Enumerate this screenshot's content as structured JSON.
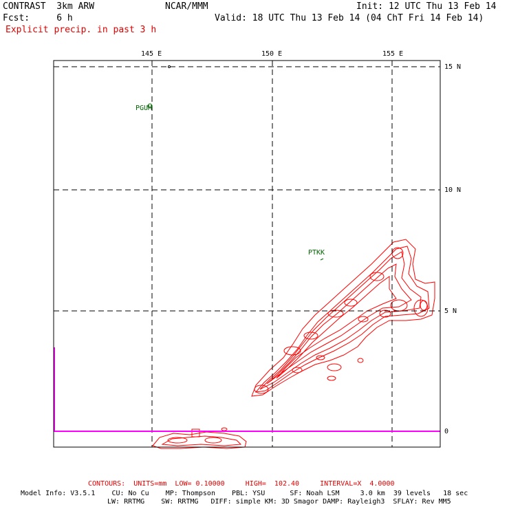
{
  "header": {
    "model_name": "CONTRAST  3km ARW",
    "org": "NCAR/MMM",
    "init": "Init: 12 UTC Thu 13 Feb 14",
    "fcst": "Fcst:     6 h",
    "valid": "Valid: 18 UTC Thu 13 Feb 14 (04 ChT Fri 14 Feb 14)",
    "field": "Explicit precip. in past 3 h"
  },
  "map": {
    "lon_labels": [
      "145 E",
      "150 E",
      "155 E"
    ],
    "lat_labels": [
      "15 N",
      "10 N",
      "5 N",
      "0"
    ],
    "stations": [
      {
        "id": "PGUM"
      },
      {
        "id": "PTKK"
      }
    ],
    "colors": {
      "contour": "#ff0000",
      "grid": "#000000",
      "station": "#006400",
      "baseline": "#ff00ff"
    }
  },
  "footer": {
    "contours": "CONTOURS:  UNITS=mm  LOW= 0.10000     HIGH=  102.40     INTERVAL=X  4.0000",
    "model_info_1": "Model Info: V3.5.1    CU: No Cu    MP: Thompson    PBL: YSU      SF: Noah LSM     3.0 km  39 levels   18 sec",
    "model_info_2": "LW: RRTMG    SW: RRTMG   DIFF: simple KM: 3D Smagor DAMP: Rayleigh3  SFLAY: Rev MM5"
  }
}
